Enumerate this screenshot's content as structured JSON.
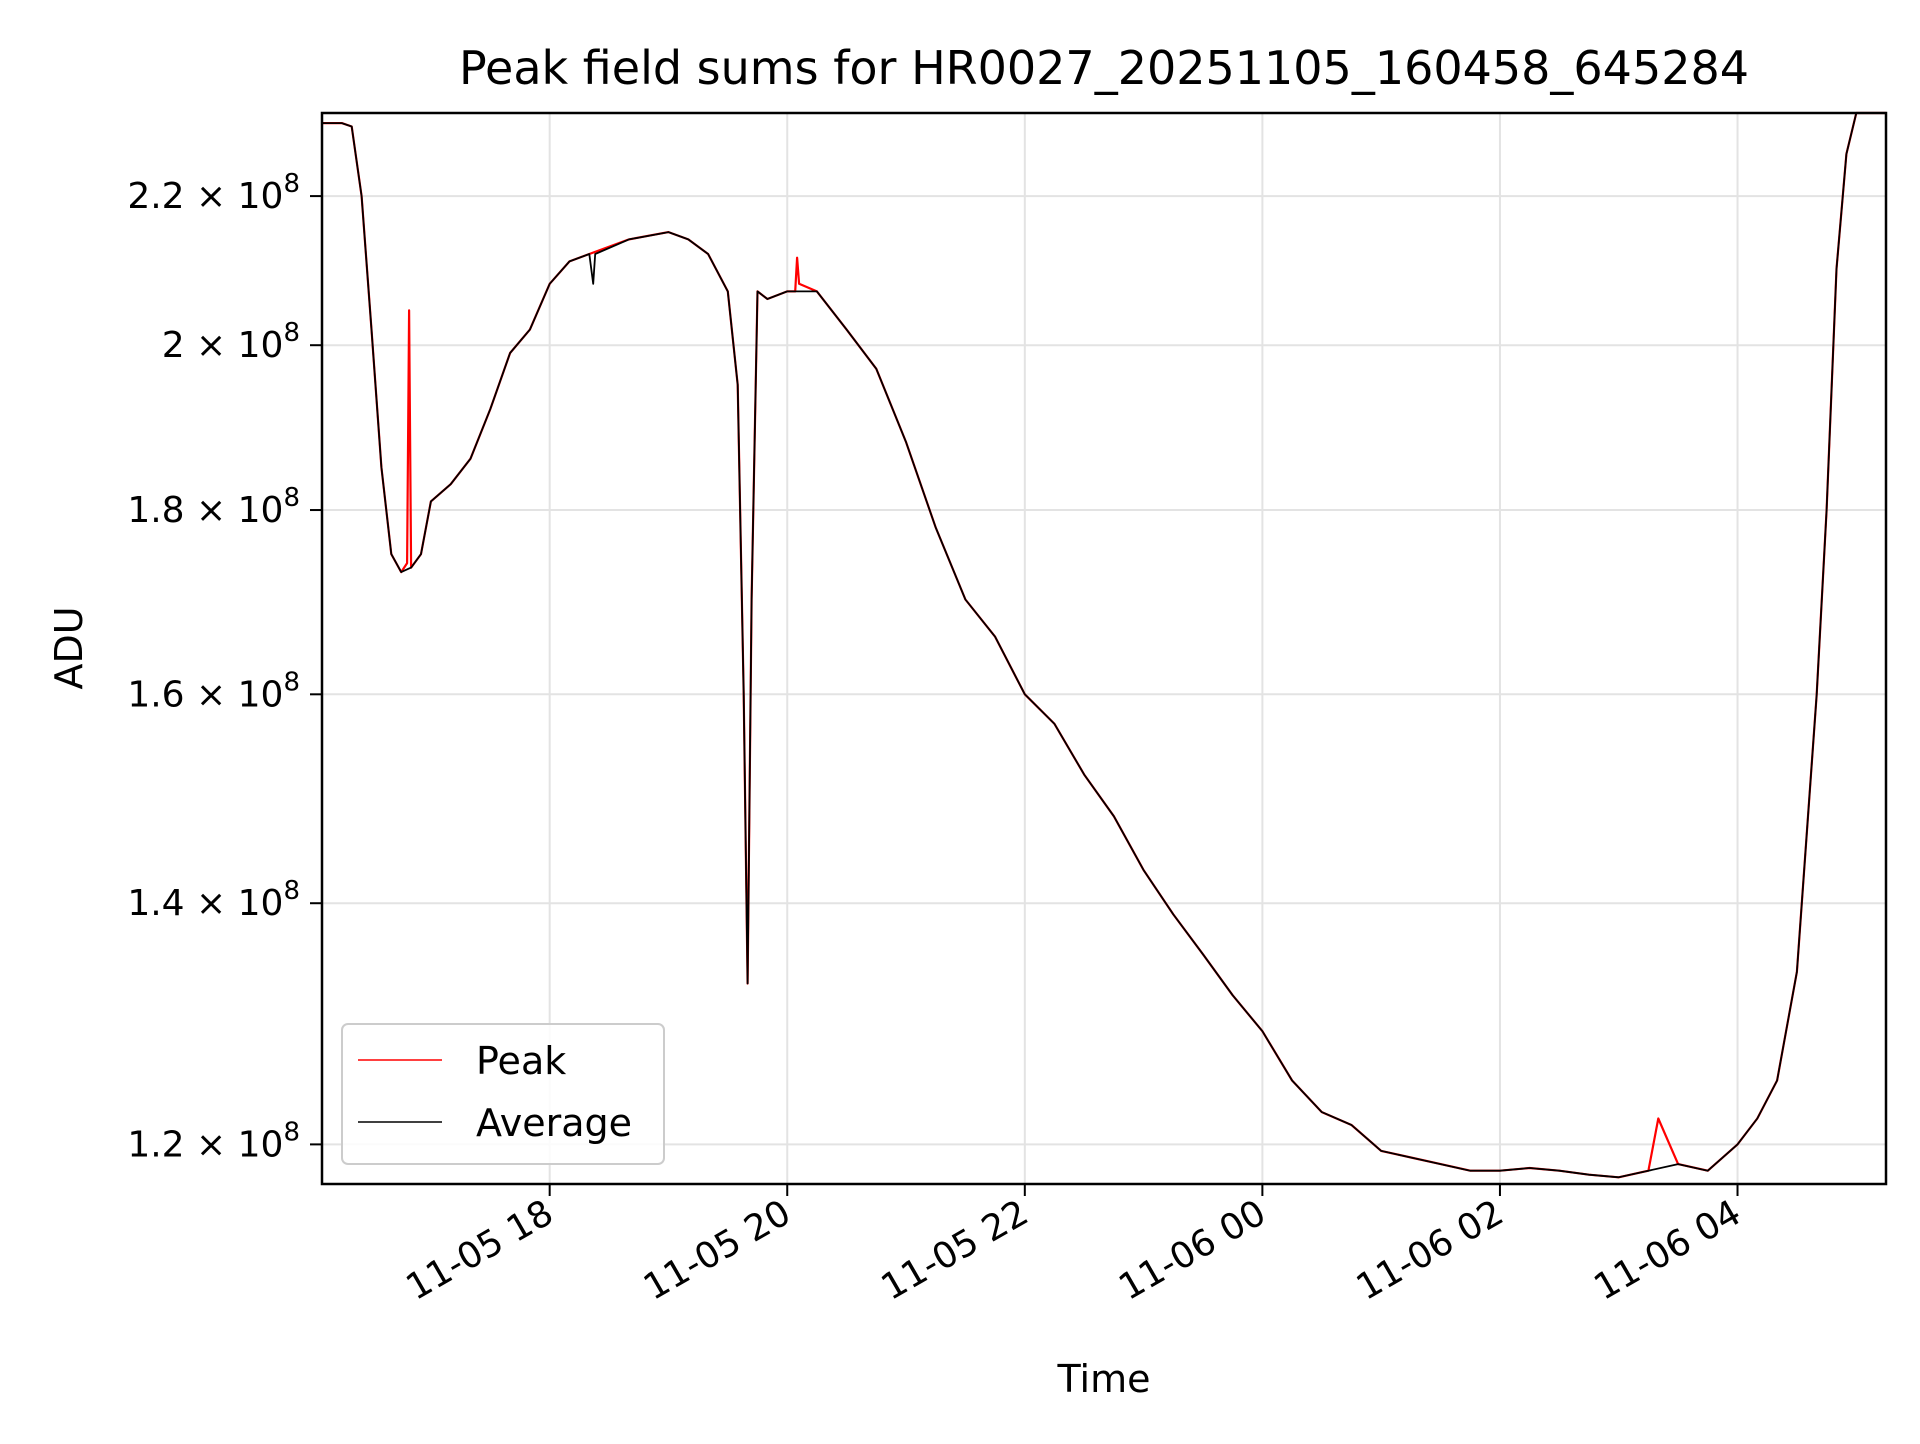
{
  "chart_data": {
    "type": "line",
    "title": "Peak field sums for HR0027_20251105_160458_645284",
    "xlabel": "Time",
    "ylabel": "ADU",
    "yscale": "log",
    "grid": true,
    "legend_position": "lower-left",
    "xlim": [
      "2025-11-05 16:05",
      "2025-11-06 05:15"
    ],
    "ylim": [
      117000000,
      232000000
    ],
    "x_ticks": [
      {
        "value": "2025-11-05 18:00",
        "label": "11-05 18"
      },
      {
        "value": "2025-11-05 20:00",
        "label": "11-05 20"
      },
      {
        "value": "2025-11-05 22:00",
        "label": "11-05 22"
      },
      {
        "value": "2025-11-06 00:00",
        "label": "11-06 00"
      },
      {
        "value": "2025-11-06 02:00",
        "label": "11-06 02"
      },
      {
        "value": "2025-11-06 04:00",
        "label": "11-06 04"
      }
    ],
    "y_ticks": [
      {
        "value": 120000000,
        "mantissa": "1.2",
        "exponent": "8"
      },
      {
        "value": 140000000,
        "mantissa": "1.4",
        "exponent": "8"
      },
      {
        "value": 160000000,
        "mantissa": "1.6",
        "exponent": "8"
      },
      {
        "value": 180000000,
        "mantissa": "1.8",
        "exponent": "8"
      },
      {
        "value": 200000000,
        "mantissa": "2",
        "exponent": "8"
      },
      {
        "value": 220000000,
        "mantissa": "2.2",
        "exponent": "8"
      }
    ],
    "tick_times_label": "× 10",
    "series": [
      {
        "name": "Peak",
        "color": "#ff0000",
        "points": [
          [
            "2025-11-05 16:05",
            230500000.0
          ],
          [
            "2025-11-05 16:15",
            230500000.0
          ],
          [
            "2025-11-05 16:20",
            230000000.0
          ],
          [
            "2025-11-05 16:25",
            220000000.0
          ],
          [
            "2025-11-05 16:30",
            202000000.0
          ],
          [
            "2025-11-05 16:35",
            185000000.0
          ],
          [
            "2025-11-05 16:40",
            175000000.0
          ],
          [
            "2025-11-05 16:45",
            173000000.0
          ],
          [
            "2025-11-05 16:48",
            174000000.0
          ],
          [
            "2025-11-05 16:49",
            204500000.0
          ],
          [
            "2025-11-05 16:50",
            173500000.0
          ],
          [
            "2025-11-05 16:55",
            175000000.0
          ],
          [
            "2025-11-05 17:00",
            181000000.0
          ],
          [
            "2025-11-05 17:05",
            182000000.0
          ],
          [
            "2025-11-05 17:10",
            183000000.0
          ],
          [
            "2025-11-05 17:20",
            186000000.0
          ],
          [
            "2025-11-05 17:30",
            192000000.0
          ],
          [
            "2025-11-05 17:40",
            199000000.0
          ],
          [
            "2025-11-05 17:50",
            202000000.0
          ],
          [
            "2025-11-05 18:00",
            208000000.0
          ],
          [
            "2025-11-05 18:10",
            211000000.0
          ],
          [
            "2025-11-05 18:20",
            212000000.0
          ],
          [
            "2025-11-05 18:40",
            214000000.0
          ],
          [
            "2025-11-05 19:00",
            215000000.0
          ],
          [
            "2025-11-05 19:10",
            214000000.0
          ],
          [
            "2025-11-05 19:20",
            212000000.0
          ],
          [
            "2025-11-05 19:30",
            207000000.0
          ],
          [
            "2025-11-05 19:35",
            195000000.0
          ],
          [
            "2025-11-05 19:38",
            160000000.0
          ],
          [
            "2025-11-05 19:40",
            133000000.0
          ],
          [
            "2025-11-05 19:42",
            170000000.0
          ],
          [
            "2025-11-05 19:45",
            207000000.0
          ],
          [
            "2025-11-05 19:50",
            206000000.0
          ],
          [
            "2025-11-05 20:00",
            207000000.0
          ],
          [
            "2025-11-05 20:04",
            207000000.0
          ],
          [
            "2025-11-05 20:05",
            211500000.0
          ],
          [
            "2025-11-05 20:06",
            208000000.0
          ],
          [
            "2025-11-05 20:15",
            207000000.0
          ],
          [
            "2025-11-05 20:30",
            202000000.0
          ],
          [
            "2025-11-05 20:45",
            197000000.0
          ],
          [
            "2025-11-05 21:00",
            188000000.0
          ],
          [
            "2025-11-05 21:15",
            178000000.0
          ],
          [
            "2025-11-05 21:30",
            170000000.0
          ],
          [
            "2025-11-05 21:45",
            166000000.0
          ],
          [
            "2025-11-05 22:00",
            160000000.0
          ],
          [
            "2025-11-05 22:15",
            157000000.0
          ],
          [
            "2025-11-05 22:30",
            152000000.0
          ],
          [
            "2025-11-05 22:45",
            148000000.0
          ],
          [
            "2025-11-05 23:00",
            143000000.0
          ],
          [
            "2025-11-05 23:15",
            139000000.0
          ],
          [
            "2025-11-05 23:30",
            135500000.0
          ],
          [
            "2025-11-05 23:45",
            132000000.0
          ],
          [
            "2025-11-06 00:00",
            129000000.0
          ],
          [
            "2025-11-06 00:15",
            125000000.0
          ],
          [
            "2025-11-06 00:30",
            122500000.0
          ],
          [
            "2025-11-06 00:45",
            121500000.0
          ],
          [
            "2025-11-06 01:00",
            119500000.0
          ],
          [
            "2025-11-06 01:15",
            119000000.0
          ],
          [
            "2025-11-06 01:30",
            118500000.0
          ],
          [
            "2025-11-06 01:45",
            118000000.0
          ],
          [
            "2025-11-06 02:00",
            118000000.0
          ],
          [
            "2025-11-06 02:15",
            118200000.0
          ],
          [
            "2025-11-06 02:30",
            118000000.0
          ],
          [
            "2025-11-06 02:45",
            117700000.0
          ],
          [
            "2025-11-06 03:00",
            117500000.0
          ],
          [
            "2025-11-06 03:15",
            118000000.0
          ],
          [
            "2025-11-06 03:20",
            122000000.0
          ],
          [
            "2025-11-06 03:30",
            118500000.0
          ],
          [
            "2025-11-06 03:45",
            118000000.0
          ],
          [
            "2025-11-06 04:00",
            120000000.0
          ],
          [
            "2025-11-06 04:10",
            122000000.0
          ],
          [
            "2025-11-06 04:20",
            125000000.0
          ],
          [
            "2025-11-06 04:30",
            134000000.0
          ],
          [
            "2025-11-06 04:40",
            160000000.0
          ],
          [
            "2025-11-06 04:45",
            180000000.0
          ],
          [
            "2025-11-06 04:50",
            210000000.0
          ],
          [
            "2025-11-06 04:55",
            226000000.0
          ],
          [
            "2025-11-06 05:00",
            232000000.0
          ],
          [
            "2025-11-06 05:15",
            232000000.0
          ]
        ]
      },
      {
        "name": "Average",
        "color": "#000000",
        "points": [
          [
            "2025-11-05 16:05",
            230500000.0
          ],
          [
            "2025-11-05 16:15",
            230500000.0
          ],
          [
            "2025-11-05 16:20",
            230000000.0
          ],
          [
            "2025-11-05 16:25",
            220000000.0
          ],
          [
            "2025-11-05 16:30",
            202000000.0
          ],
          [
            "2025-11-05 16:35",
            185000000.0
          ],
          [
            "2025-11-05 16:40",
            175000000.0
          ],
          [
            "2025-11-05 16:45",
            173000000.0
          ],
          [
            "2025-11-05 16:50",
            173500000.0
          ],
          [
            "2025-11-05 16:55",
            175000000.0
          ],
          [
            "2025-11-05 17:00",
            181000000.0
          ],
          [
            "2025-11-05 17:05",
            182000000.0
          ],
          [
            "2025-11-05 17:10",
            183000000.0
          ],
          [
            "2025-11-05 17:20",
            186000000.0
          ],
          [
            "2025-11-05 17:30",
            192000000.0
          ],
          [
            "2025-11-05 17:40",
            199000000.0
          ],
          [
            "2025-11-05 17:50",
            202000000.0
          ],
          [
            "2025-11-05 18:00",
            208000000.0
          ],
          [
            "2025-11-05 18:10",
            211000000.0
          ],
          [
            "2025-11-05 18:20",
            212000000.0
          ],
          [
            "2025-11-05 18:22",
            208000000.0
          ],
          [
            "2025-11-05 18:23",
            212000000.0
          ],
          [
            "2025-11-05 18:40",
            214000000.0
          ],
          [
            "2025-11-05 19:00",
            215000000.0
          ],
          [
            "2025-11-05 19:10",
            214000000.0
          ],
          [
            "2025-11-05 19:20",
            212000000.0
          ],
          [
            "2025-11-05 19:30",
            207000000.0
          ],
          [
            "2025-11-05 19:35",
            195000000.0
          ],
          [
            "2025-11-05 19:38",
            160000000.0
          ],
          [
            "2025-11-05 19:40",
            133000000.0
          ],
          [
            "2025-11-05 19:42",
            170000000.0
          ],
          [
            "2025-11-05 19:45",
            207000000.0
          ],
          [
            "2025-11-05 19:50",
            206000000.0
          ],
          [
            "2025-11-05 20:00",
            207000000.0
          ],
          [
            "2025-11-05 20:15",
            207000000.0
          ],
          [
            "2025-11-05 20:30",
            202000000.0
          ],
          [
            "2025-11-05 20:45",
            197000000.0
          ],
          [
            "2025-11-05 21:00",
            188000000.0
          ],
          [
            "2025-11-05 21:15",
            178000000.0
          ],
          [
            "2025-11-05 21:30",
            170000000.0
          ],
          [
            "2025-11-05 21:45",
            166000000.0
          ],
          [
            "2025-11-05 22:00",
            160000000.0
          ],
          [
            "2025-11-05 22:15",
            157000000.0
          ],
          [
            "2025-11-05 22:30",
            152000000.0
          ],
          [
            "2025-11-05 22:45",
            148000000.0
          ],
          [
            "2025-11-05 23:00",
            143000000.0
          ],
          [
            "2025-11-05 23:15",
            139000000.0
          ],
          [
            "2025-11-05 23:30",
            135500000.0
          ],
          [
            "2025-11-05 23:45",
            132000000.0
          ],
          [
            "2025-11-06 00:00",
            129000000.0
          ],
          [
            "2025-11-06 00:15",
            125000000.0
          ],
          [
            "2025-11-06 00:30",
            122500000.0
          ],
          [
            "2025-11-06 00:45",
            121500000.0
          ],
          [
            "2025-11-06 01:00",
            119500000.0
          ],
          [
            "2025-11-06 01:15",
            119000000.0
          ],
          [
            "2025-11-06 01:30",
            118500000.0
          ],
          [
            "2025-11-06 01:45",
            118000000.0
          ],
          [
            "2025-11-06 02:00",
            118000000.0
          ],
          [
            "2025-11-06 02:15",
            118200000.0
          ],
          [
            "2025-11-06 02:30",
            118000000.0
          ],
          [
            "2025-11-06 02:45",
            117700000.0
          ],
          [
            "2025-11-06 03:00",
            117500000.0
          ],
          [
            "2025-11-06 03:15",
            118000000.0
          ],
          [
            "2025-11-06 03:30",
            118500000.0
          ],
          [
            "2025-11-06 03:45",
            118000000.0
          ],
          [
            "2025-11-06 04:00",
            120000000.0
          ],
          [
            "2025-11-06 04:10",
            122000000.0
          ],
          [
            "2025-11-06 04:20",
            125000000.0
          ],
          [
            "2025-11-06 04:30",
            134000000.0
          ],
          [
            "2025-11-06 04:40",
            160000000.0
          ],
          [
            "2025-11-06 04:45",
            180000000.0
          ],
          [
            "2025-11-06 04:50",
            210000000.0
          ],
          [
            "2025-11-06 04:55",
            226000000.0
          ],
          [
            "2025-11-06 05:00",
            232000000.0
          ],
          [
            "2025-11-06 05:15",
            232000000.0
          ]
        ]
      }
    ]
  }
}
